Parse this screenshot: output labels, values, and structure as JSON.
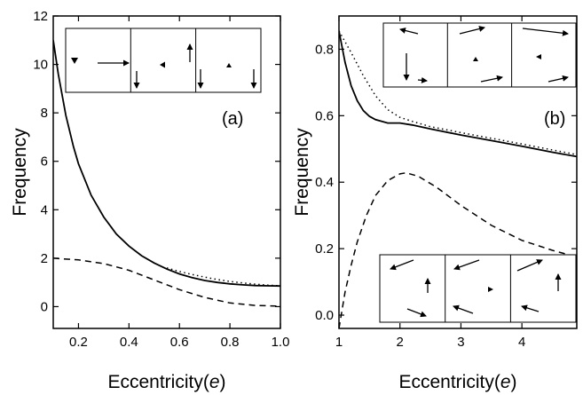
{
  "chart_data": [
    {
      "type": "line",
      "panel_label": "(a)",
      "xlabel_main": "Eccentricity(",
      "xlabel_var": "e",
      "xlabel_close": ")",
      "ylabel": "Frequency",
      "xlim": [
        0.1,
        1.0
      ],
      "ylim": [
        -0.9,
        12
      ],
      "xticks": [
        0.2,
        0.4,
        0.6,
        0.8,
        1.0
      ],
      "xtick_labels": [
        "0.2",
        "0.4",
        "0.6",
        "0.8",
        "1.0"
      ],
      "yticks": [
        0,
        2,
        4,
        6,
        8,
        10,
        12
      ],
      "ytick_labels": [
        "0",
        "2",
        "4",
        "6",
        "8",
        "10",
        "12"
      ],
      "series": [
        {
          "style": "solid",
          "x": [
            0.1,
            0.12,
            0.15,
            0.18,
            0.2,
            0.25,
            0.3,
            0.35,
            0.4,
            0.45,
            0.5,
            0.55,
            0.6,
            0.65,
            0.7,
            0.75,
            0.8,
            0.85,
            0.9,
            0.95,
            1.0
          ],
          "y": [
            11.0,
            9.6,
            7.9,
            6.6,
            5.9,
            4.6,
            3.7,
            3.0,
            2.5,
            2.1,
            1.8,
            1.55,
            1.35,
            1.2,
            1.08,
            1.0,
            0.94,
            0.9,
            0.87,
            0.86,
            0.85
          ]
        },
        {
          "style": "dotted",
          "x": [
            0.55,
            0.6,
            0.65,
            0.7,
            0.75,
            0.8,
            0.85,
            0.9,
            0.95,
            1.0
          ],
          "y": [
            1.6,
            1.45,
            1.33,
            1.22,
            1.12,
            1.04,
            0.98,
            0.93,
            0.89,
            0.86
          ]
        },
        {
          "style": "dashed",
          "x": [
            0.1,
            0.2,
            0.3,
            0.4,
            0.5,
            0.6,
            0.7,
            0.8,
            0.9,
            1.0
          ],
          "y": [
            2.0,
            1.93,
            1.78,
            1.5,
            1.1,
            0.7,
            0.38,
            0.15,
            0.05,
            0.02
          ]
        }
      ]
    },
    {
      "type": "line",
      "panel_label": "(b)",
      "xlabel_main": "Eccentricity(",
      "xlabel_var": "e",
      "xlabel_close": ")",
      "ylabel": "Frequency",
      "xlim": [
        1,
        4.9
      ],
      "ylim": [
        -0.04,
        0.9
      ],
      "xticks": [
        1,
        2,
        3,
        4
      ],
      "xtick_labels": [
        "1",
        "2",
        "3",
        "4"
      ],
      "yticks": [
        0.0,
        0.2,
        0.4,
        0.6,
        0.8
      ],
      "ytick_labels": [
        "0.0",
        "0.2",
        "0.4",
        "0.6",
        "0.8"
      ],
      "series": [
        {
          "style": "solid",
          "x": [
            1.0,
            1.1,
            1.2,
            1.3,
            1.4,
            1.5,
            1.6,
            1.8,
            2.0,
            2.2,
            2.5,
            3.0,
            3.5,
            4.0,
            4.5,
            4.9
          ],
          "y": [
            0.855,
            0.76,
            0.69,
            0.645,
            0.615,
            0.598,
            0.588,
            0.578,
            0.578,
            0.572,
            0.56,
            0.542,
            0.525,
            0.508,
            0.49,
            0.477
          ]
        },
        {
          "style": "dotted",
          "x": [
            1.0,
            1.2,
            1.4,
            1.6,
            1.8,
            2.0,
            2.2,
            2.5,
            3.0,
            3.5,
            4.0,
            4.5,
            4.9
          ],
          "y": [
            0.855,
            0.79,
            0.72,
            0.66,
            0.618,
            0.595,
            0.583,
            0.567,
            0.549,
            0.532,
            0.515,
            0.497,
            0.483
          ]
        },
        {
          "style": "dashed",
          "x": [
            1.0,
            1.1,
            1.2,
            1.3,
            1.45,
            1.6,
            1.8,
            2.0,
            2.1,
            2.3,
            2.6,
            3.0,
            3.5,
            4.0,
            4.5,
            4.9
          ],
          "y": [
            -0.04,
            0.07,
            0.15,
            0.22,
            0.3,
            0.36,
            0.405,
            0.425,
            0.428,
            0.418,
            0.385,
            0.33,
            0.27,
            0.225,
            0.195,
            0.175
          ]
        }
      ]
    }
  ]
}
